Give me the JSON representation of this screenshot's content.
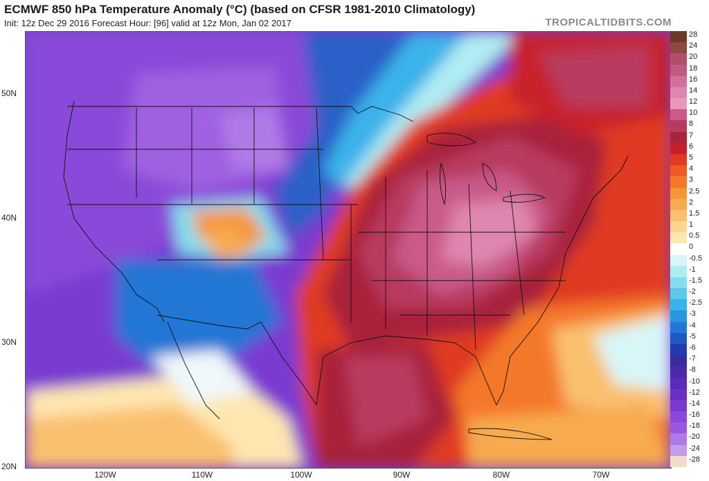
{
  "header": {
    "title": "ECMWF 850 hPa Temperature Anomaly (°C) (based on CFSR 1981-2010 Climatology)",
    "subtitle": "Init: 12z Dec 29 2016   Forecast Hour: [96]   valid at 12z Mon, Jan 02 2017",
    "watermark": "TROPICALTIDBITS.COM"
  },
  "map": {
    "latitude_labels": [
      "50N",
      "40N",
      "30N",
      "20N"
    ],
    "longitude_labels": [
      "120W",
      "110W",
      "100W",
      "90W",
      "80W",
      "70W"
    ],
    "features": [
      "us-state-boundaries",
      "coastlines",
      "country-borders",
      "great-lakes"
    ]
  },
  "colorbar": {
    "levels": [
      "28",
      "24",
      "20",
      "18",
      "16",
      "14",
      "12",
      "10",
      "8",
      "7",
      "6",
      "5",
      "4",
      "3",
      "2.5",
      "2",
      "1.5",
      "1",
      "0.5",
      "0",
      "-0.5",
      "-1",
      "-1.5",
      "-2",
      "-2.5",
      "-3",
      "-4",
      "-5",
      "-6",
      "-7",
      "-8",
      "-10",
      "-12",
      "-14",
      "-16",
      "-18",
      "-20",
      "-24",
      "-28"
    ],
    "colors": [
      "#6b3a2a",
      "#8b4a42",
      "#b0506a",
      "#c05a80",
      "#d2709a",
      "#df86b0",
      "#e898bc",
      "#c95a8a",
      "#b83a5e",
      "#a8243a",
      "#c8202a",
      "#e03a22",
      "#ee5a24",
      "#f4782a",
      "#f6943a",
      "#f8aa50",
      "#fac070",
      "#fcd690",
      "#fee6b0",
      "#ffffff",
      "#d8f6f8",
      "#b0ecf2",
      "#86dcee",
      "#5cc8ec",
      "#3ab2ea",
      "#2a96e2",
      "#2276d4",
      "#1e58c2",
      "#243aae",
      "#3a2c9c",
      "#4a2aa8",
      "#5a2ab8",
      "#6a30c4",
      "#7a3ad0",
      "#8a48d8",
      "#9a58e0",
      "#b07ae6",
      "#c49cec",
      "#f0dcc8"
    ]
  }
}
